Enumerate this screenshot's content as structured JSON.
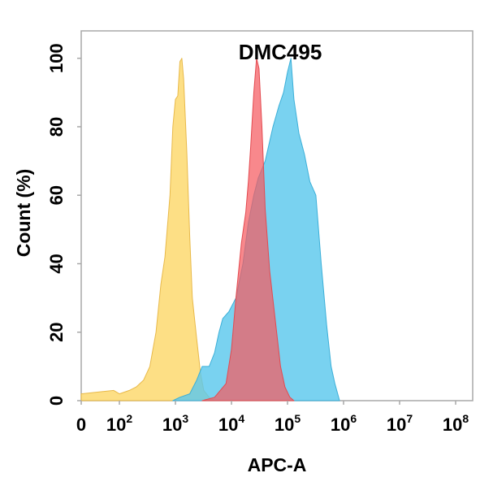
{
  "chart_data": {
    "type": "area",
    "title": "DMC495",
    "xlabel": "APC-A",
    "ylabel": "Count  (%)",
    "x_scale": "biexponential",
    "xlim": [
      0,
      100000000
    ],
    "ylim": [
      0,
      108
    ],
    "y_ticks": [
      "0",
      "20",
      "40",
      "60",
      "80",
      "100"
    ],
    "x_ticks": [
      {
        "base": "0",
        "exp": ""
      },
      {
        "base": "10",
        "exp": "2"
      },
      {
        "base": "10",
        "exp": "3"
      },
      {
        "base": "10",
        "exp": "4"
      },
      {
        "base": "10",
        "exp": "5"
      },
      {
        "base": "10",
        "exp": "6"
      },
      {
        "base": "10",
        "exp": "7"
      },
      {
        "base": "10",
        "exp": "8"
      }
    ],
    "grid": false,
    "legend": "none",
    "series": [
      {
        "color": "#FCD86A",
        "stroke": "#E8B94A",
        "points": [
          [
            0,
            2
          ],
          [
            50,
            3
          ],
          [
            100,
            2
          ],
          [
            150,
            3
          ],
          [
            200,
            4
          ],
          [
            270,
            6
          ],
          [
            350,
            10
          ],
          [
            450,
            20
          ],
          [
            550,
            34
          ],
          [
            650,
            42
          ],
          [
            800,
            60
          ],
          [
            900,
            80
          ],
          [
            1000,
            88
          ],
          [
            1100,
            89
          ],
          [
            1200,
            99
          ],
          [
            1300,
            100
          ],
          [
            1400,
            94
          ],
          [
            1600,
            72
          ],
          [
            1800,
            48
          ],
          [
            2000,
            30
          ],
          [
            2400,
            18
          ],
          [
            2800,
            8
          ],
          [
            3200,
            3
          ],
          [
            4000,
            1
          ],
          [
            5000,
            0
          ]
        ]
      },
      {
        "color": "#5BC8ED",
        "stroke": "#3BAFD8",
        "points": [
          [
            900,
            0
          ],
          [
            1200,
            1
          ],
          [
            1800,
            2
          ],
          [
            2400,
            6
          ],
          [
            3000,
            10
          ],
          [
            4000,
            10
          ],
          [
            5000,
            14
          ],
          [
            6000,
            20
          ],
          [
            7000,
            24
          ],
          [
            9000,
            26
          ],
          [
            12000,
            30
          ],
          [
            16000,
            40
          ],
          [
            20000,
            52
          ],
          [
            25000,
            60
          ],
          [
            30000,
            65
          ],
          [
            40000,
            70
          ],
          [
            55000,
            80
          ],
          [
            70000,
            86
          ],
          [
            85000,
            90
          ],
          [
            100000,
            96
          ],
          [
            115000,
            100
          ],
          [
            130000,
            88
          ],
          [
            160000,
            78
          ],
          [
            200000,
            72
          ],
          [
            250000,
            64
          ],
          [
            320000,
            60
          ],
          [
            400000,
            40
          ],
          [
            500000,
            22
          ],
          [
            600000,
            10
          ],
          [
            700000,
            5
          ],
          [
            850000,
            0
          ]
        ]
      },
      {
        "color": "#F55A5F",
        "stroke": "#E34A50",
        "points": [
          [
            3000,
            0
          ],
          [
            5000,
            1
          ],
          [
            8000,
            5
          ],
          [
            10000,
            15
          ],
          [
            12000,
            30
          ],
          [
            15000,
            46
          ],
          [
            18000,
            55
          ],
          [
            20000,
            64
          ],
          [
            22000,
            74
          ],
          [
            25000,
            90
          ],
          [
            28000,
            100
          ],
          [
            31000,
            97
          ],
          [
            35000,
            80
          ],
          [
            40000,
            56
          ],
          [
            48000,
            38
          ],
          [
            60000,
            24
          ],
          [
            75000,
            10
          ],
          [
            90000,
            4
          ],
          [
            110000,
            1
          ],
          [
            130000,
            0
          ]
        ]
      }
    ]
  }
}
